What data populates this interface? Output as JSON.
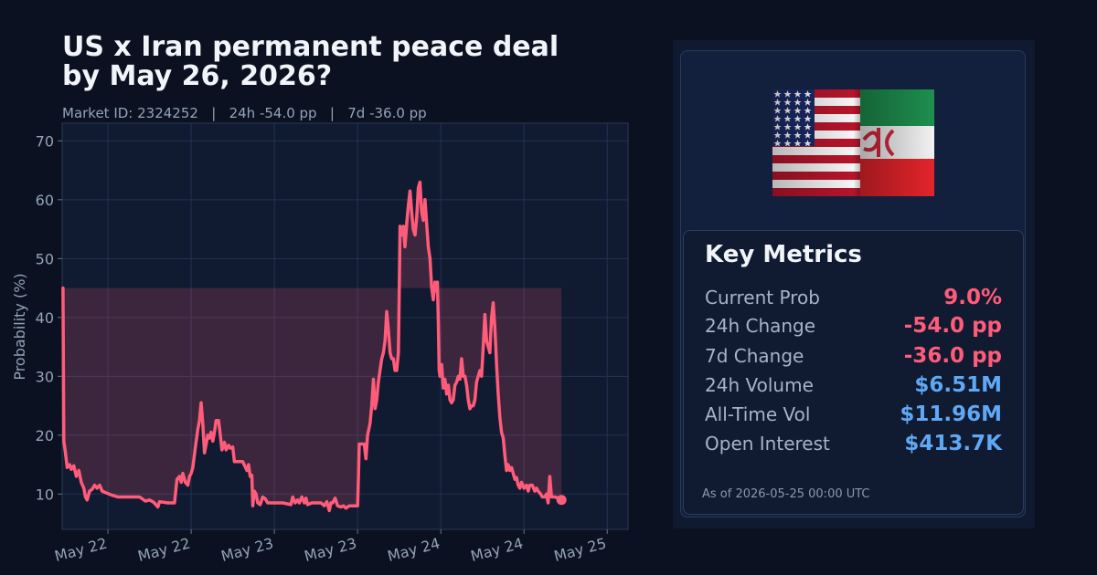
{
  "title_line1": "US x Iran permanent peace deal",
  "title_line2": "by May 26, 2026?",
  "subtitle": "Market ID: 2324252   |   24h -54.0 pp   |   7d -36.0 pp",
  "metrics": {
    "title": "Key Metrics",
    "rows": [
      {
        "label": "Current Prob",
        "value": "9.0%",
        "tone": "neg"
      },
      {
        "label": "24h Change",
        "value": "-54.0 pp",
        "tone": "neg"
      },
      {
        "label": "7d Change",
        "value": "-36.0 pp",
        "tone": "neg"
      },
      {
        "label": "24h Volume",
        "value": "$6.51M",
        "tone": "blue"
      },
      {
        "label": "All-Time Vol",
        "value": "$11.96M",
        "tone": "blue"
      },
      {
        "label": "Open Interest",
        "value": "$413.7K",
        "tone": "blue"
      }
    ],
    "as_of": "As of 2026-05-25 00:00 UTC"
  },
  "colors": {
    "line": "#ff5c7a",
    "negative": "#ff5c7a",
    "positive_blue": "#5fa8f5",
    "background": "#0b1120"
  },
  "chart_data": {
    "type": "line",
    "ylabel": "Probability (%)",
    "xlabel": "",
    "ylim": [
      4,
      73
    ],
    "yticks": [
      10,
      20,
      30,
      40,
      50,
      60,
      70
    ],
    "xlim": [
      -0.55,
      6.25
    ],
    "xticks": [
      0,
      1,
      2,
      3,
      4,
      5,
      6
    ],
    "xticklabels": [
      "May 22",
      "May 22",
      "May 23",
      "May 23",
      "May 24",
      "May 24",
      "May 25"
    ],
    "grid": true,
    "baseline": 45,
    "series": [
      {
        "values": [
          [
            -0.54,
            45
          ],
          [
            -0.53,
            19
          ],
          [
            -0.51,
            17
          ],
          [
            -0.49,
            14.5
          ],
          [
            -0.46,
            15
          ],
          [
            -0.44,
            14.2
          ],
          [
            -0.41,
            14.8
          ],
          [
            -0.38,
            13
          ],
          [
            -0.35,
            14
          ],
          [
            -0.32,
            12
          ],
          [
            -0.29,
            11
          ],
          [
            -0.27,
            9.5
          ],
          [
            -0.25,
            9
          ],
          [
            -0.22,
            10.5
          ],
          [
            -0.19,
            10.8
          ],
          [
            -0.16,
            11.5
          ],
          [
            -0.13,
            11
          ],
          [
            -0.1,
            11.5
          ],
          [
            -0.07,
            10.5
          ],
          [
            -0.02,
            10.2
          ],
          [
            0.05,
            9.8
          ],
          [
            0.12,
            9.5
          ],
          [
            0.2,
            9.5
          ],
          [
            0.3,
            9.5
          ],
          [
            0.38,
            9.5
          ],
          [
            0.45,
            8.8
          ],
          [
            0.5,
            9
          ],
          [
            0.55,
            8.6
          ],
          [
            0.6,
            7.8
          ],
          [
            0.62,
            8.7
          ],
          [
            0.72,
            8.5
          ],
          [
            0.8,
            8.5
          ],
          [
            0.83,
            12.5
          ],
          [
            0.86,
            13
          ],
          [
            0.88,
            12
          ],
          [
            0.9,
            13.5
          ],
          [
            0.93,
            12
          ],
          [
            0.96,
            11.5
          ],
          [
            0.98,
            13
          ],
          [
            1.0,
            13.5
          ],
          [
            1.02,
            14.5
          ],
          [
            1.05,
            17.8
          ],
          [
            1.08,
            21
          ],
          [
            1.1,
            22.5
          ],
          [
            1.12,
            25.5
          ],
          [
            1.14,
            22
          ],
          [
            1.16,
            17
          ],
          [
            1.18,
            18.5
          ],
          [
            1.2,
            20
          ],
          [
            1.22,
            19.5
          ],
          [
            1.24,
            20.5
          ],
          [
            1.26,
            19
          ],
          [
            1.28,
            20.5
          ],
          [
            1.3,
            22.5
          ],
          [
            1.33,
            22.5
          ],
          [
            1.35,
            20
          ],
          [
            1.37,
            17.5
          ],
          [
            1.4,
            18.8
          ],
          [
            1.42,
            17.5
          ],
          [
            1.45,
            18.3
          ],
          [
            1.47,
            17.8
          ],
          [
            1.5,
            18
          ],
          [
            1.52,
            15.5
          ],
          [
            1.57,
            15.5
          ],
          [
            1.62,
            15.5
          ],
          [
            1.67,
            14
          ],
          [
            1.69,
            15
          ],
          [
            1.71,
            13
          ],
          [
            1.73,
            13.2
          ],
          [
            1.74,
            8
          ],
          [
            1.76,
            10.5
          ],
          [
            1.78,
            10
          ],
          [
            1.8,
            8.5
          ],
          [
            1.83,
            8.2
          ],
          [
            1.86,
            9.5
          ],
          [
            1.89,
            9.2
          ],
          [
            1.92,
            8.5
          ],
          [
            2.0,
            8.5
          ],
          [
            2.1,
            8.5
          ],
          [
            2.2,
            8.2
          ],
          [
            2.22,
            9.5
          ],
          [
            2.25,
            8.5
          ],
          [
            2.28,
            9
          ],
          [
            2.3,
            8.5
          ],
          [
            2.33,
            9.5
          ],
          [
            2.36,
            8.5
          ],
          [
            2.38,
            9.3
          ],
          [
            2.4,
            8.2
          ],
          [
            2.45,
            8.5
          ],
          [
            2.5,
            8.5
          ],
          [
            2.56,
            8.5
          ],
          [
            2.6,
            8
          ],
          [
            2.63,
            8.7
          ],
          [
            2.66,
            7.2
          ],
          [
            2.68,
            8.5
          ],
          [
            2.7,
            8.5
          ],
          [
            2.73,
            9.3
          ],
          [
            2.76,
            8
          ],
          [
            2.8,
            7.8
          ],
          [
            2.83,
            8
          ],
          [
            2.86,
            7.6
          ],
          [
            2.9,
            8
          ],
          [
            2.95,
            8
          ],
          [
            3.0,
            8
          ],
          [
            3.01,
            13
          ],
          [
            3.02,
            18.5
          ],
          [
            3.05,
            18.5
          ],
          [
            3.08,
            18.5
          ],
          [
            3.1,
            16
          ],
          [
            3.12,
            20
          ],
          [
            3.15,
            22
          ],
          [
            3.17,
            25
          ],
          [
            3.19,
            29.5
          ],
          [
            3.21,
            24.5
          ],
          [
            3.23,
            26
          ],
          [
            3.25,
            29
          ],
          [
            3.27,
            31
          ],
          [
            3.29,
            33
          ],
          [
            3.31,
            34
          ],
          [
            3.33,
            36
          ],
          [
            3.35,
            41
          ],
          [
            3.37,
            38
          ],
          [
            3.39,
            34
          ],
          [
            3.41,
            33
          ],
          [
            3.43,
            33
          ],
          [
            3.45,
            31
          ],
          [
            3.47,
            31
          ],
          [
            3.49,
            34
          ],
          [
            3.5,
            44
          ],
          [
            3.51,
            55.5
          ],
          [
            3.53,
            54
          ],
          [
            3.55,
            55.5
          ],
          [
            3.57,
            52
          ],
          [
            3.59,
            56
          ],
          [
            3.61,
            59
          ],
          [
            3.63,
            61.5
          ],
          [
            3.65,
            58
          ],
          [
            3.67,
            55
          ],
          [
            3.69,
            54
          ],
          [
            3.71,
            57
          ],
          [
            3.73,
            62
          ],
          [
            3.75,
            63
          ],
          [
            3.77,
            58
          ],
          [
            3.79,
            56.5
          ],
          [
            3.81,
            60
          ],
          [
            3.83,
            56
          ],
          [
            3.85,
            52
          ],
          [
            3.87,
            50
          ],
          [
            3.89,
            45
          ],
          [
            3.91,
            43
          ],
          [
            3.93,
            46
          ],
          [
            3.95,
            44.5
          ],
          [
            3.96,
            46
          ],
          [
            3.97,
            39
          ],
          [
            3.98,
            31
          ],
          [
            3.99,
            30
          ],
          [
            4.01,
            32
          ],
          [
            4.03,
            28
          ],
          [
            4.05,
            29.5
          ],
          [
            4.07,
            27
          ],
          [
            4.09,
            28.5
          ],
          [
            4.11,
            26
          ],
          [
            4.13,
            25.5
          ],
          [
            4.15,
            26
          ],
          [
            4.17,
            28.5
          ],
          [
            4.19,
            29
          ],
          [
            4.21,
            30
          ],
          [
            4.23,
            29.5
          ],
          [
            4.25,
            33
          ],
          [
            4.27,
            30
          ],
          [
            4.29,
            30
          ],
          [
            4.31,
            28.5
          ],
          [
            4.33,
            26
          ],
          [
            4.35,
            24.5
          ],
          [
            4.37,
            25
          ],
          [
            4.39,
            25
          ],
          [
            4.41,
            26
          ],
          [
            4.43,
            29
          ],
          [
            4.45,
            30
          ],
          [
            4.47,
            31
          ],
          [
            4.49,
            30
          ],
          [
            4.51,
            35
          ],
          [
            4.53,
            40.5
          ],
          [
            4.55,
            36
          ],
          [
            4.57,
            35
          ],
          [
            4.59,
            34
          ],
          [
            4.61,
            40
          ],
          [
            4.63,
            42.5
          ],
          [
            4.65,
            38
          ],
          [
            4.67,
            32
          ],
          [
            4.69,
            27
          ],
          [
            4.71,
            23
          ],
          [
            4.73,
            20.5
          ],
          [
            4.75,
            19.5
          ],
          [
            4.77,
            16.5
          ],
          [
            4.79,
            14
          ],
          [
            4.81,
            15
          ],
          [
            4.83,
            14
          ],
          [
            4.85,
            14.5
          ],
          [
            4.87,
            13.5
          ],
          [
            4.89,
            12.5
          ],
          [
            4.91,
            12.8
          ],
          [
            4.93,
            11.5
          ],
          [
            4.95,
            11
          ],
          [
            4.97,
            12
          ],
          [
            5.0,
            11
          ],
          [
            5.03,
            11.5
          ],
          [
            5.05,
            10.5
          ],
          [
            5.07,
            11.5
          ],
          [
            5.1,
            11.5
          ],
          [
            5.13,
            10.5
          ],
          [
            5.15,
            11
          ],
          [
            5.17,
            10.5
          ],
          [
            5.2,
            10
          ],
          [
            5.22,
            9.5
          ],
          [
            5.25,
            9.5
          ],
          [
            5.27,
            10
          ],
          [
            5.29,
            8.5
          ],
          [
            5.31,
            13
          ],
          [
            5.33,
            9.5
          ],
          [
            5.35,
            9.5
          ],
          [
            5.38,
            9.5
          ],
          [
            5.41,
            9.2
          ],
          [
            5.43,
            9
          ],
          [
            5.45,
            9
          ]
        ]
      }
    ]
  }
}
